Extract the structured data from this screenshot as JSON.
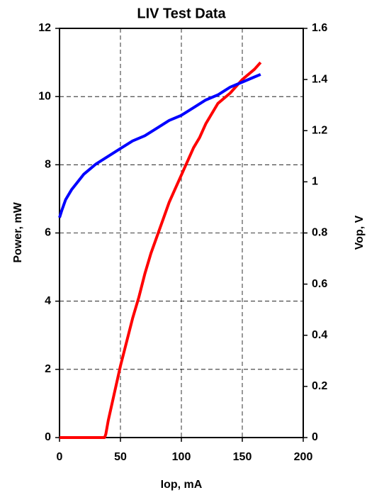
{
  "chart_data": {
    "type": "line",
    "title": "LIV Test Data",
    "x_label": "Iop, mA",
    "y_label": "Power, mW",
    "y2_label": "Vop, V",
    "xlim": [
      0,
      200
    ],
    "xticks": [
      0,
      50,
      100,
      150,
      200
    ],
    "ylim": [
      0,
      12
    ],
    "yticks": [
      0,
      2,
      4,
      6,
      8,
      10,
      12
    ],
    "y2lim": [
      0,
      1.6
    ],
    "y2ticks": [
      0,
      0.2,
      0.4,
      0.6,
      0.8,
      1,
      1.2,
      1.4,
      1.6
    ],
    "grid": true,
    "series": [
      {
        "color": "#ff0000",
        "x": [
          0,
          37,
          38,
          40,
          45,
          50,
          55,
          60,
          65,
          70,
          75,
          80,
          85,
          90,
          95,
          100,
          105,
          110,
          115,
          120,
          130,
          140,
          150,
          160,
          165
        ],
        "values": [
          0,
          0,
          0.1,
          0.5,
          1.3,
          2.1,
          2.8,
          3.5,
          4.1,
          4.8,
          5.4,
          5.9,
          6.4,
          6.9,
          7.3,
          7.7,
          8.1,
          8.5,
          8.8,
          9.2,
          9.8,
          10.1,
          10.5,
          10.8,
          11.0
        ]
      },
      {
        "color": "#0000ff",
        "axis": "y2",
        "x": [
          0,
          2,
          5,
          10,
          20,
          30,
          40,
          50,
          60,
          70,
          80,
          90,
          100,
          110,
          120,
          130,
          140,
          150,
          160,
          165
        ],
        "values": [
          0.86,
          0.89,
          0.93,
          0.97,
          1.03,
          1.07,
          1.1,
          1.13,
          1.16,
          1.18,
          1.21,
          1.24,
          1.26,
          1.29,
          1.32,
          1.34,
          1.37,
          1.39,
          1.41,
          1.42
        ]
      }
    ]
  }
}
